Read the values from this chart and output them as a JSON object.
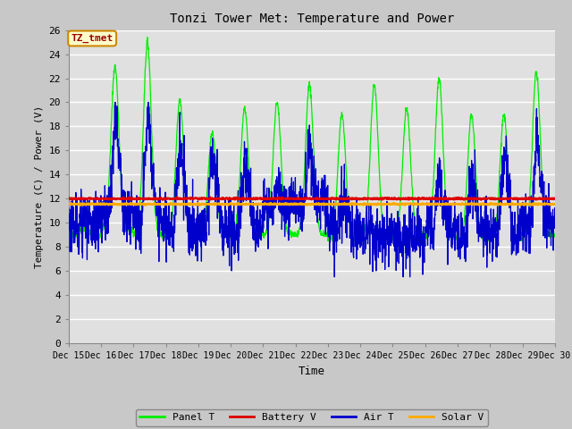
{
  "title": "Tonzi Tower Met: Temperature and Power",
  "xlabel": "Time",
  "ylabel": "Temperature (C) / Power (V)",
  "ylim": [
    0,
    26
  ],
  "yticks": [
    0,
    2,
    4,
    6,
    8,
    10,
    12,
    14,
    16,
    18,
    20,
    22,
    24,
    26
  ],
  "xtick_labels": [
    "Dec 15",
    "Dec 16",
    "Dec 17",
    "Dec 18",
    "Dec 19",
    "Dec 20",
    "Dec 21",
    "Dec 22",
    "Dec 23",
    "Dec 24",
    "Dec 25",
    "Dec 26",
    "Dec 27",
    "Dec 28",
    "Dec 29",
    "Dec 30"
  ],
  "battery_v": 12.0,
  "solar_v": 11.55,
  "plot_bg_color": "#e0e0e0",
  "fig_bg_color": "#c8c8c8",
  "grid_color": "#ffffff",
  "panel_t_color": "#00ee00",
  "battery_v_color": "#dd0000",
  "air_t_color": "#0000cc",
  "solar_v_color": "#ffaa00",
  "legend_label_panel": "Panel T",
  "legend_label_battery": "Battery V",
  "legend_label_air": "Air T",
  "legend_label_solar": "Solar V",
  "annotation_text": "TZ_tmet",
  "annotation_bg": "#ffffcc",
  "annotation_border": "#cc8800"
}
